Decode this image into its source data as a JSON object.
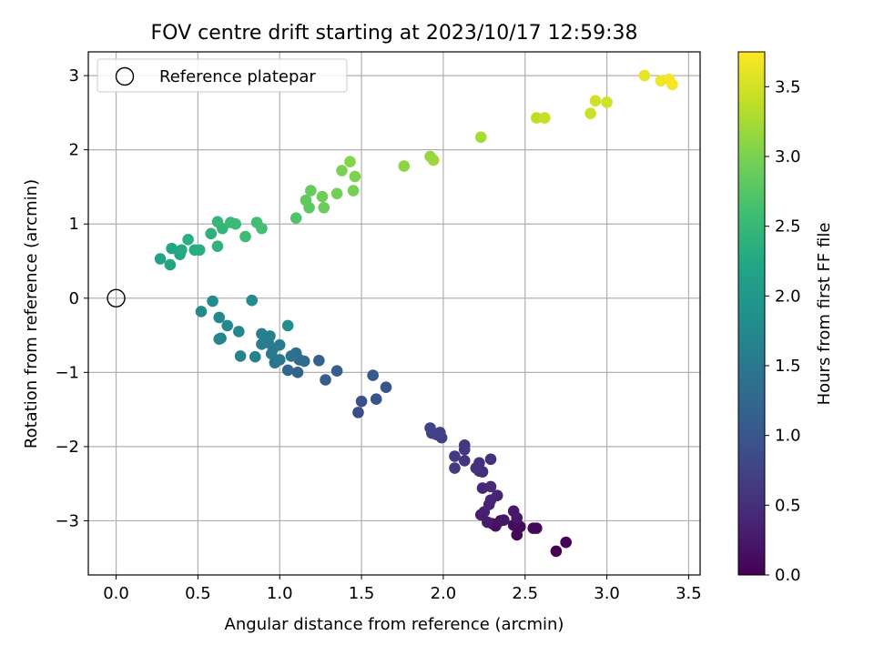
{
  "chart_data": {
    "type": "scatter",
    "title": "FOV centre drift starting at 2023/10/17 12:59:38",
    "xlabel": "Angular distance from reference (arcmin)",
    "ylabel": "Rotation from reference (arcmin)",
    "xlim": [
      -0.17,
      3.57
    ],
    "ylim": [
      -3.73,
      3.32
    ],
    "xticks": [
      0.0,
      0.5,
      1.0,
      1.5,
      2.0,
      2.5,
      3.0,
      3.5
    ],
    "xtick_labels": [
      "0.0",
      "0.5",
      "1.0",
      "1.5",
      "2.0",
      "2.5",
      "3.0",
      "3.5"
    ],
    "yticks": [
      3,
      2,
      1,
      0,
      -1,
      -2,
      -3
    ],
    "ytick_labels": [
      "3",
      "2",
      "1",
      "0",
      "−1",
      "−2",
      "−3"
    ],
    "grid": true,
    "legend": {
      "placement": "top-left",
      "entries": [
        "Reference platepar"
      ]
    },
    "reference_point": {
      "x": 0.0,
      "y": 0.0,
      "label": "Reference platepar"
    },
    "colorbar": {
      "label": "Hours from first FF file",
      "colormap": "viridis",
      "range": [
        0.0,
        3.75
      ],
      "ticks": [
        0.0,
        0.5,
        1.0,
        1.5,
        2.0,
        2.5,
        3.0,
        3.5
      ],
      "tick_labels": [
        "0.0",
        "0.5",
        "1.0",
        "1.5",
        "2.0",
        "2.5",
        "3.0",
        "3.5"
      ]
    },
    "points": [
      {
        "x": 2.69,
        "y": -3.41,
        "c": 0.0
      },
      {
        "x": 2.75,
        "y": -3.29,
        "c": 0.02
      },
      {
        "x": 2.45,
        "y": -3.19,
        "c": 0.05
      },
      {
        "x": 2.57,
        "y": -3.1,
        "c": 0.07
      },
      {
        "x": 2.55,
        "y": -3.1,
        "c": 0.09
      },
      {
        "x": 2.47,
        "y": -3.08,
        "c": 0.11
      },
      {
        "x": 2.43,
        "y": -3.06,
        "c": 0.13
      },
      {
        "x": 2.32,
        "y": -3.07,
        "c": 0.15
      },
      {
        "x": 2.3,
        "y": -3.04,
        "c": 0.17
      },
      {
        "x": 2.35,
        "y": -3.0,
        "c": 0.2
      },
      {
        "x": 2.37,
        "y": -2.99,
        "c": 0.22
      },
      {
        "x": 2.45,
        "y": -2.96,
        "c": 0.24
      },
      {
        "x": 2.43,
        "y": -2.87,
        "c": 0.26
      },
      {
        "x": 2.27,
        "y": -3.02,
        "c": 0.28
      },
      {
        "x": 2.23,
        "y": -2.92,
        "c": 0.3
      },
      {
        "x": 2.25,
        "y": -2.88,
        "c": 0.33
      },
      {
        "x": 2.28,
        "y": -2.78,
        "c": 0.35
      },
      {
        "x": 2.33,
        "y": -2.66,
        "c": 0.37
      },
      {
        "x": 2.29,
        "y": -2.72,
        "c": 0.39
      },
      {
        "x": 2.24,
        "y": -2.56,
        "c": 0.41
      },
      {
        "x": 2.29,
        "y": -2.54,
        "c": 0.44
      },
      {
        "x": 2.24,
        "y": -2.34,
        "c": 0.46
      },
      {
        "x": 2.22,
        "y": -2.33,
        "c": 0.48
      },
      {
        "x": 2.22,
        "y": -2.22,
        "c": 0.5
      },
      {
        "x": 2.29,
        "y": -2.17,
        "c": 0.52
      },
      {
        "x": 2.2,
        "y": -2.29,
        "c": 0.55
      },
      {
        "x": 2.13,
        "y": -2.19,
        "c": 0.57
      },
      {
        "x": 2.13,
        "y": -1.98,
        "c": 0.59
      },
      {
        "x": 2.13,
        "y": -2.04,
        "c": 0.61
      },
      {
        "x": 2.07,
        "y": -2.29,
        "c": 0.63
      },
      {
        "x": 2.07,
        "y": -2.13,
        "c": 0.65
      },
      {
        "x": 1.99,
        "y": -1.88,
        "c": 0.68
      },
      {
        "x": 1.96,
        "y": -1.84,
        "c": 0.7
      },
      {
        "x": 1.98,
        "y": -1.81,
        "c": 0.72
      },
      {
        "x": 1.93,
        "y": -1.82,
        "c": 0.74
      },
      {
        "x": 1.92,
        "y": -1.75,
        "c": 0.76
      },
      {
        "x": 1.48,
        "y": -1.54,
        "c": 0.88
      },
      {
        "x": 1.5,
        "y": -1.39,
        "c": 0.92
      },
      {
        "x": 1.59,
        "y": -1.36,
        "c": 0.96
      },
      {
        "x": 1.65,
        "y": -1.2,
        "c": 1.0
      },
      {
        "x": 1.57,
        "y": -1.04,
        "c": 1.04
      },
      {
        "x": 1.28,
        "y": -1.1,
        "c": 1.08
      },
      {
        "x": 1.35,
        "y": -0.98,
        "c": 1.12
      },
      {
        "x": 1.24,
        "y": -0.84,
        "c": 1.16
      },
      {
        "x": 1.11,
        "y": -1.0,
        "c": 1.2
      },
      {
        "x": 1.05,
        "y": -0.97,
        "c": 1.24
      },
      {
        "x": 1.12,
        "y": -0.83,
        "c": 1.28
      },
      {
        "x": 1.15,
        "y": -0.85,
        "c": 1.32
      },
      {
        "x": 1.1,
        "y": -0.74,
        "c": 1.36
      },
      {
        "x": 1.07,
        "y": -0.78,
        "c": 1.4
      },
      {
        "x": 0.97,
        "y": -0.87,
        "c": 1.44
      },
      {
        "x": 1.0,
        "y": -0.83,
        "c": 1.48
      },
      {
        "x": 0.95,
        "y": -0.75,
        "c": 1.5
      },
      {
        "x": 0.96,
        "y": -0.68,
        "c": 1.52
      },
      {
        "x": 1.0,
        "y": -0.63,
        "c": 1.54
      },
      {
        "x": 0.93,
        "y": -0.6,
        "c": 1.56
      },
      {
        "x": 0.89,
        "y": -0.62,
        "c": 1.58
      },
      {
        "x": 0.94,
        "y": -0.51,
        "c": 1.6
      },
      {
        "x": 0.89,
        "y": -0.48,
        "c": 1.62
      },
      {
        "x": 0.85,
        "y": -0.79,
        "c": 1.64
      },
      {
        "x": 0.76,
        "y": -0.78,
        "c": 1.66
      },
      {
        "x": 0.64,
        "y": -0.54,
        "c": 1.68
      },
      {
        "x": 0.63,
        "y": -0.55,
        "c": 1.7
      },
      {
        "x": 0.75,
        "y": -0.45,
        "c": 1.72
      },
      {
        "x": 0.68,
        "y": -0.37,
        "c": 1.74
      },
      {
        "x": 0.63,
        "y": -0.26,
        "c": 1.76
      },
      {
        "x": 0.52,
        "y": -0.18,
        "c": 1.78
      },
      {
        "x": 0.59,
        "y": -0.04,
        "c": 1.8
      },
      {
        "x": 0.83,
        "y": -0.03,
        "c": 1.82
      },
      {
        "x": 1.05,
        "y": -0.37,
        "c": 1.84
      },
      {
        "x": 0.27,
        "y": 0.53,
        "c": 2.15
      },
      {
        "x": 0.33,
        "y": 0.45,
        "c": 2.18
      },
      {
        "x": 0.39,
        "y": 0.59,
        "c": 2.21
      },
      {
        "x": 0.34,
        "y": 0.67,
        "c": 2.24
      },
      {
        "x": 0.4,
        "y": 0.65,
        "c": 2.27
      },
      {
        "x": 0.48,
        "y": 0.65,
        "c": 2.3
      },
      {
        "x": 0.51,
        "y": 0.65,
        "c": 2.33
      },
      {
        "x": 0.44,
        "y": 0.79,
        "c": 2.36
      },
      {
        "x": 0.58,
        "y": 0.87,
        "c": 2.39
      },
      {
        "x": 0.62,
        "y": 0.7,
        "c": 2.42
      },
      {
        "x": 0.65,
        "y": 0.94,
        "c": 2.45
      },
      {
        "x": 0.62,
        "y": 1.03,
        "c": 2.48
      },
      {
        "x": 0.7,
        "y": 1.02,
        "c": 2.51
      },
      {
        "x": 0.73,
        "y": 1.0,
        "c": 2.54
      },
      {
        "x": 0.79,
        "y": 0.83,
        "c": 2.57
      },
      {
        "x": 0.86,
        "y": 1.02,
        "c": 2.6
      },
      {
        "x": 0.89,
        "y": 0.94,
        "c": 2.63
      },
      {
        "x": 1.1,
        "y": 1.08,
        "c": 2.7
      },
      {
        "x": 1.18,
        "y": 1.22,
        "c": 2.8
      },
      {
        "x": 1.16,
        "y": 1.32,
        "c": 2.83
      },
      {
        "x": 1.19,
        "y": 1.45,
        "c": 2.86
      },
      {
        "x": 1.27,
        "y": 1.22,
        "c": 2.89
      },
      {
        "x": 1.26,
        "y": 1.37,
        "c": 2.92
      },
      {
        "x": 1.35,
        "y": 1.41,
        "c": 2.95
      },
      {
        "x": 1.45,
        "y": 1.45,
        "c": 2.97
      },
      {
        "x": 1.38,
        "y": 1.72,
        "c": 3.0
      },
      {
        "x": 1.46,
        "y": 1.64,
        "c": 3.02
      },
      {
        "x": 1.43,
        "y": 1.84,
        "c": 3.05
      },
      {
        "x": 1.76,
        "y": 1.78,
        "c": 3.1
      },
      {
        "x": 1.92,
        "y": 1.91,
        "c": 3.15
      },
      {
        "x": 1.94,
        "y": 1.86,
        "c": 3.18
      },
      {
        "x": 2.23,
        "y": 2.17,
        "c": 3.25
      },
      {
        "x": 2.57,
        "y": 2.43,
        "c": 3.38
      },
      {
        "x": 2.62,
        "y": 2.43,
        "c": 3.4
      },
      {
        "x": 2.9,
        "y": 2.49,
        "c": 3.45
      },
      {
        "x": 2.93,
        "y": 2.66,
        "c": 3.48
      },
      {
        "x": 3.0,
        "y": 2.64,
        "c": 3.5
      },
      {
        "x": 3.23,
        "y": 3.0,
        "c": 3.62
      },
      {
        "x": 3.33,
        "y": 2.93,
        "c": 3.66
      },
      {
        "x": 3.38,
        "y": 2.95,
        "c": 3.69
      },
      {
        "x": 3.4,
        "y": 2.88,
        "c": 3.72
      }
    ]
  }
}
